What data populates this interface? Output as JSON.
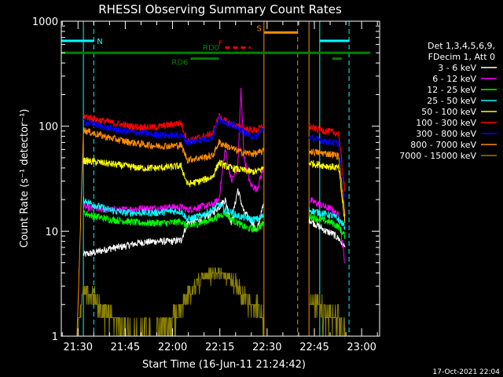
{
  "chart_data": {
    "type": "line",
    "title": "RHESSI Observing Summary Count Rates",
    "xlabel": "Start Time (16-Jun-11 21:24:42)",
    "ylabel": "Count Rate (s⁻¹ detector⁻¹)",
    "y_scale": "log",
    "ylim": [
      1,
      1000
    ],
    "xlim_minutes_after_start": [
      0,
      101
    ],
    "x_ticks": [
      {
        "label": "21:30",
        "t": 5.3
      },
      {
        "label": "21:45",
        "t": 20.3
      },
      {
        "label": "22:00",
        "t": 35.3
      },
      {
        "label": "22:15",
        "t": 50.3
      },
      {
        "label": "22:30",
        "t": 65.3
      },
      {
        "label": "22:45",
        "t": 80.3
      },
      {
        "label": "23:00",
        "t": 95.3
      }
    ],
    "y_ticks": [
      {
        "label": "1",
        "v": 1
      },
      {
        "label": "10",
        "v": 10
      },
      {
        "label": "100",
        "v": 100
      },
      {
        "label": "1000",
        "v": 1000
      }
    ],
    "legend_header": [
      "Det 1,3,4,5,6,9,",
      "FDecim 1, Att 0"
    ],
    "legend_position": "right",
    "timestamp": "17-Oct-2021 22:04",
    "vertical_markers": [
      {
        "t": 7.0,
        "color": "#00ffff",
        "style": "solid"
      },
      {
        "t": 10.3,
        "color": "#00ffff",
        "style": "dashed"
      },
      {
        "t": 64.3,
        "color": "#ff8c00",
        "style": "solid"
      },
      {
        "t": 75.0,
        "color": "#ff8c00",
        "style": "dashed"
      },
      {
        "t": 78.6,
        "color": "#ff8c00",
        "style": "solid"
      },
      {
        "t": 82.0,
        "color": "#00ffff",
        "style": "solid"
      },
      {
        "t": 91.3,
        "color": "#00ffff",
        "style": "dashed"
      }
    ],
    "flag_bars": [
      {
        "label": "N",
        "color": "#00ffff",
        "t0": 0.0,
        "t1": 10.3,
        "v": 650
      },
      {
        "label": "",
        "color": "#00ffff",
        "t0": 82.0,
        "t1": 91.3,
        "v": 650
      },
      {
        "label": "S",
        "color": "#ff8c00",
        "t0": 64.3,
        "t1": 75.0,
        "v": 780
      },
      {
        "label": "F",
        "color": "#ff0000",
        "t0": 52.0,
        "t1": 60.0,
        "v": 560,
        "dashed": true
      },
      {
        "label": "RD0",
        "color": "#008000",
        "t0": 0.0,
        "t1": 98.0,
        "v": 500
      },
      {
        "label": "RD6",
        "color": "#008000",
        "t0": 41.0,
        "t1": 50.0,
        "v": 440
      },
      {
        "label": "",
        "color": "#008000",
        "t0": 86.0,
        "t1": 89.0,
        "v": 440
      }
    ],
    "series": [
      {
        "name": "3 - 6 keV",
        "color": "#ffffff",
        "segments": [
          {
            "t": [
              7.0,
              10,
              15,
              20,
              25,
              30,
              35,
              38,
              40,
              44,
              48,
              50,
              52,
              54,
              56,
              58,
              60,
              62,
              64.2
            ],
            "v": [
              6.0,
              6.2,
              6.8,
              7.2,
              7.8,
              8.0,
              8.0,
              8.2,
              12,
              13,
              15,
              17,
              20,
              12,
              25,
              15,
              13,
              10,
              18
            ]
          },
          {
            "t": [
              78.6,
              80,
              82,
              84,
              86,
              88,
              90
            ],
            "v": [
              13,
              12,
              11,
              10,
              9.5,
              8.5,
              7
            ]
          }
        ]
      },
      {
        "name": "6 - 12 keV",
        "color": "#ff00ff",
        "segments": [
          {
            "t": [
              7.0,
              10,
              15,
              20,
              25,
              30,
              35,
              38,
              40,
              44,
              48,
              50,
              52,
              54,
              56,
              57,
              58,
              60,
              62,
              64.2
            ],
            "v": [
              17,
              16.5,
              16,
              16,
              16.5,
              16.5,
              17,
              17,
              16,
              17,
              18,
              20,
              60,
              30,
              40,
              220,
              50,
              28,
              25,
              40
            ]
          },
          {
            "t": [
              78.6,
              80,
              82,
              84,
              86,
              88,
              90
            ],
            "v": [
              20,
              19,
              18,
              17,
              16,
              14,
              5
            ]
          }
        ]
      },
      {
        "name": "12 - 25 keV",
        "color": "#00ff00",
        "segments": [
          {
            "t": [
              7.0,
              10,
              15,
              20,
              25,
              30,
              35,
              38,
              40,
              44,
              48,
              50,
              52,
              54,
              56,
              58,
              60,
              62,
              64.2
            ],
            "v": [
              15,
              14,
              13,
              12.5,
              12,
              12,
              12,
              12.5,
              11,
              12,
              13,
              14,
              15,
              13,
              12,
              11,
              10.5,
              10.5,
              12
            ]
          },
          {
            "t": [
              78.6,
              80,
              82,
              84,
              86,
              88,
              90
            ],
            "v": [
              14,
              13.5,
              13,
              12.5,
              12,
              11,
              9
            ]
          }
        ]
      },
      {
        "name": "25 - 50 keV",
        "color": "#00ffff",
        "segments": [
          {
            "t": [
              7.0,
              10,
              15,
              20,
              25,
              30,
              35,
              38,
              40,
              44,
              48,
              50,
              52,
              54,
              56,
              58,
              60,
              62,
              64.2
            ],
            "v": [
              20,
              18,
              16,
              15,
              15,
              15,
              15.5,
              15.5,
              13,
              14,
              16,
              18,
              16,
              15,
              14,
              13.5,
              13,
              13,
              14
            ]
          },
          {
            "t": [
              78.6,
              80,
              82,
              84,
              86,
              88,
              90
            ],
            "v": [
              16,
              15.5,
              15,
              14.5,
              14,
              13,
              11
            ]
          }
        ]
      },
      {
        "name": "50 - 100 keV",
        "color": "#ffff00",
        "segments": [
          {
            "t": [
              7.0,
              10,
              15,
              20,
              25,
              30,
              35,
              38,
              40,
              44,
              48,
              50,
              52,
              54,
              56,
              58,
              60,
              62,
              64.2
            ],
            "v": [
              47,
              46,
              44,
              42,
              40,
              40,
              41,
              42,
              28,
              30,
              33,
              45,
              42,
              40,
              39,
              38,
              37,
              37,
              40
            ]
          },
          {
            "t": [
              78.6,
              80,
              82,
              84,
              86,
              88,
              90
            ],
            "v": [
              45,
              44,
              43,
              42,
              41,
              40,
              12
            ]
          }
        ]
      },
      {
        "name": "100 - 300 keV",
        "color": "#ff0000",
        "segments": [
          {
            "t": [
              7.0,
              10,
              15,
              20,
              25,
              30,
              35,
              38,
              40,
              44,
              48,
              50,
              52,
              54,
              56,
              58,
              60,
              62,
              64.2
            ],
            "v": [
              125,
              118,
              110,
              102,
              98,
              98,
              104,
              108,
              72,
              78,
              85,
              125,
              112,
              105,
              100,
              95,
              92,
              92,
              100
            ]
          },
          {
            "t": [
              78.6,
              80,
              82,
              84,
              86,
              88,
              90
            ],
            "v": [
              100,
              96,
              92,
              90,
              88,
              85,
              24
            ]
          }
        ]
      },
      {
        "name": "300 - 800 keV",
        "color": "#0000ff",
        "segments": [
          {
            "t": [
              7.0,
              10,
              15,
              20,
              25,
              30,
              35,
              38,
              40,
              44,
              48,
              50,
              52,
              54,
              56,
              58,
              60,
              62,
              64.2
            ],
            "v": [
              110,
              105,
              96,
              90,
              86,
              83,
              82,
              82,
              70,
              74,
              78,
              120,
              110,
              103,
              96,
              88,
              80,
              80,
              95
            ]
          },
          {
            "t": [
              78.6,
              80,
              82,
              84,
              86,
              88,
              90
            ],
            "v": [
              78,
              76,
              74,
              72,
              70,
              68,
              20
            ]
          }
        ]
      },
      {
        "name": "800 - 7000 keV",
        "color": "#ff8c00",
        "segments": [
          {
            "t": [
              5.0,
              7.0,
              10,
              15,
              20,
              25,
              30,
              35,
              38,
              40,
              44,
              48,
              50,
              52,
              54,
              56,
              58,
              60,
              62,
              64.2
            ],
            "v": [
              1,
              92,
              86,
              78,
              72,
              68,
              65,
              65,
              66,
              48,
              50,
              52,
              70,
              66,
              62,
              58,
              56,
              55,
              55,
              58
            ]
          },
          {
            "t": [
              78.6,
              80,
              82,
              84,
              86,
              88,
              90
            ],
            "v": [
              58,
              57,
              56,
              55,
              54,
              52,
              14
            ]
          }
        ]
      },
      {
        "name": "7000 - 15000 keV",
        "color": "#8b8000",
        "segments": [
          {
            "t": [
              5.0,
              7.0,
              10,
              12,
              14,
              16,
              18,
              20,
              22,
              24,
              26,
              28,
              30,
              32,
              34,
              36,
              38,
              40,
              42,
              44,
              46,
              48,
              50,
              52,
              54,
              56,
              58,
              60,
              62,
              64.2
            ],
            "v": [
              1,
              2.7,
              2.3,
              2.0,
              1.7,
              1.4,
              1.2,
              1.1,
              1.0,
              1.0,
              1.0,
              1.0,
              1.0,
              1.1,
              1.3,
              1.6,
              1.9,
              2.3,
              3.0,
              3.5,
              3.8,
              4.0,
              4.0,
              3.8,
              3.5,
              3.0,
              2.4,
              2.0,
              1.8,
              1.6
            ]
          },
          {
            "t": [
              78.6,
              80,
              82,
              84,
              86,
              88,
              90
            ],
            "v": [
              2.2,
              2.0,
              1.8,
              1.6,
              1.5,
              1.4,
              1.2
            ]
          }
        ]
      }
    ]
  }
}
